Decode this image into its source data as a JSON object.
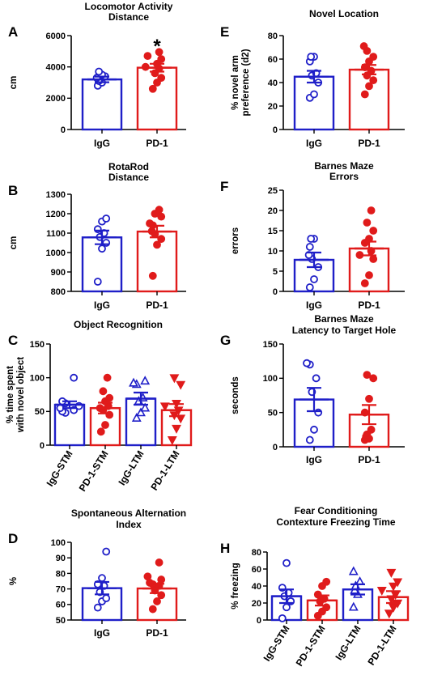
{
  "colors": {
    "IgG": "#1f1fc8",
    "PD-1": "#e01b1b",
    "axis": "#000000"
  },
  "chart_data": [
    {
      "panel": "A",
      "type": "bar",
      "title": [
        "Locomotor Activity",
        "Distance"
      ],
      "ylabel": [
        "cm"
      ],
      "ylim": [
        0,
        6000
      ],
      "yticks": [
        0,
        2000,
        4000,
        6000
      ],
      "categories": [
        "IgG",
        "PD-1"
      ],
      "groups": [
        "IgG",
        "PD-1"
      ],
      "markers": [
        "circle",
        "circle"
      ],
      "values": [
        3200,
        3950
      ],
      "sem": [
        180,
        250
      ],
      "points": [
        [
          2800,
          3000,
          3100,
          3200,
          3300,
          3400,
          3500,
          3700
        ],
        [
          2600,
          3000,
          3300,
          3600,
          3900,
          4000,
          4200,
          4500,
          4700,
          4950
        ]
      ],
      "annotation": "*"
    },
    {
      "panel": "E",
      "type": "bar",
      "title": [
        "Novel Location"
      ],
      "ylabel": [
        "% novel arm",
        "preference (d2)"
      ],
      "ylim": [
        0,
        80
      ],
      "yticks": [
        0,
        20,
        40,
        60,
        80
      ],
      "categories": [
        "IgG",
        "PD-1"
      ],
      "groups": [
        "IgG",
        "PD-1"
      ],
      "markers": [
        "circle",
        "circle"
      ],
      "values": [
        45,
        51
      ],
      "sem": [
        5,
        4
      ],
      "points": [
        [
          27,
          30,
          40,
          46,
          48,
          58,
          62,
          62
        ],
        [
          30,
          37,
          42,
          46,
          50,
          53,
          58,
          62,
          67,
          71
        ]
      ]
    },
    {
      "panel": "B",
      "type": "bar",
      "title": [
        "RotaRod",
        "Distance"
      ],
      "ylabel": [
        "cm"
      ],
      "ylim": [
        800,
        1300
      ],
      "yticks": [
        800,
        900,
        1000,
        1100,
        1200,
        1300
      ],
      "categories": [
        "IgG",
        "PD-1"
      ],
      "groups": [
        "IgG",
        "PD-1"
      ],
      "markers": [
        "circle",
        "circle"
      ],
      "values": [
        1078,
        1108
      ],
      "sem": [
        35,
        30
      ],
      "points": [
        [
          850,
          1020,
          1050,
          1080,
          1100,
          1120,
          1160,
          1175
        ],
        [
          880,
          1040,
          1070,
          1095,
          1110,
          1140,
          1150,
          1185,
          1200,
          1220
        ]
      ]
    },
    {
      "panel": "F",
      "type": "bar",
      "title": [
        "Barnes Maze",
        "Errors"
      ],
      "ylabel": [
        "errors"
      ],
      "ylim": [
        0,
        25
      ],
      "yticks": [
        0,
        5,
        10,
        15,
        20,
        25
      ],
      "categories": [
        "IgG",
        "PD-1"
      ],
      "groups": [
        "IgG",
        "PD-1"
      ],
      "markers": [
        "circle",
        "circle"
      ],
      "values": [
        7.8,
        10.6
      ],
      "sem": [
        1.8,
        1.7
      ],
      "points": [
        [
          1,
          3,
          6,
          8,
          9,
          11,
          13,
          13
        ],
        [
          2,
          4,
          8,
          9,
          10,
          12,
          13,
          15,
          17,
          20
        ]
      ]
    },
    {
      "panel": "C",
      "type": "bar",
      "title": [
        "Object Recognition"
      ],
      "ylabel": [
        "% time spent",
        "with novel object"
      ],
      "ylim": [
        0,
        150
      ],
      "yticks": [
        0,
        50,
        100,
        150
      ],
      "categories": [
        "IgG-STM",
        "PD-1-STM",
        "IgG-LTM",
        "PD-1-LTM"
      ],
      "groups": [
        "IgG",
        "PD-1",
        "IgG",
        "PD-1"
      ],
      "markers": [
        "circle",
        "circle",
        "triangle",
        "triangle-down"
      ],
      "rotate_labels": true,
      "values": [
        60,
        55,
        69,
        52
      ],
      "sem": [
        5,
        8,
        9,
        9
      ],
      "points": [
        [
          48,
          50,
          52,
          55,
          58,
          62,
          65,
          100
        ],
        [
          20,
          30,
          45,
          52,
          55,
          58,
          65,
          70,
          80,
          100
        ],
        [
          40,
          48,
          55,
          65,
          70,
          90,
          92,
          95
        ],
        [
          8,
          25,
          40,
          45,
          52,
          58,
          62,
          90,
          100
        ]
      ]
    },
    {
      "panel": "G",
      "type": "bar",
      "title": [
        "Barnes Maze",
        "Latency to Target Hole"
      ],
      "ylabel": [
        "seconds"
      ],
      "ylim": [
        0,
        150
      ],
      "yticks": [
        0,
        50,
        100,
        150
      ],
      "categories": [
        "IgG",
        "PD-1"
      ],
      "groups": [
        "IgG",
        "PD-1"
      ],
      "markers": [
        "circle",
        "circle"
      ],
      "values": [
        69,
        47
      ],
      "sem": [
        17,
        14
      ],
      "points": [
        [
          10,
          25,
          50,
          80,
          100,
          120,
          122
        ],
        [
          10,
          12,
          15,
          18,
          25,
          50,
          70,
          100,
          105
        ]
      ]
    },
    {
      "panel": "D",
      "type": "bar",
      "title": [
        "Spontaneous Alternation",
        "Index"
      ],
      "ylabel": [
        "%"
      ],
      "ylim": [
        50,
        100
      ],
      "yticks": [
        50,
        60,
        70,
        80,
        90,
        100
      ],
      "categories": [
        "IgG",
        "PD-1"
      ],
      "groups": [
        "IgG",
        "PD-1"
      ],
      "markers": [
        "circle",
        "circle"
      ],
      "values": [
        70.5,
        70.3
      ],
      "sem": [
        4,
        3
      ],
      "points": [
        [
          58,
          62,
          64,
          68,
          72,
          73,
          77,
          94
        ],
        [
          57,
          62,
          66,
          69,
          72,
          73,
          74,
          76,
          78,
          87
        ]
      ]
    },
    {
      "panel": "H",
      "type": "bar",
      "title": [
        "Fear Conditioning",
        "Contexture Freezing Time"
      ],
      "ylabel": [
        "% freezing"
      ],
      "ylim": [
        0,
        80
      ],
      "yticks": [
        0,
        20,
        40,
        60,
        80
      ],
      "categories": [
        "IgG-STM",
        "PD-1-STM",
        "IgG-LTM",
        "PD-1-LTM"
      ],
      "groups": [
        "IgG",
        "PD-1",
        "IgG",
        "PD-1"
      ],
      "markers": [
        "circle",
        "circle",
        "triangle",
        "triangle-down"
      ],
      "rotate_labels": true,
      "values": [
        28,
        23,
        36,
        27
      ],
      "sem": [
        8,
        6,
        6,
        7
      ],
      "points": [
        [
          2,
          15,
          22,
          28,
          32,
          38,
          67
        ],
        [
          5,
          10,
          15,
          22,
          25,
          30,
          40,
          45
        ],
        [
          15,
          30,
          35,
          40,
          45,
          57
        ],
        [
          8,
          15,
          20,
          25,
          30,
          35,
          40,
          45,
          56
        ]
      ]
    }
  ]
}
